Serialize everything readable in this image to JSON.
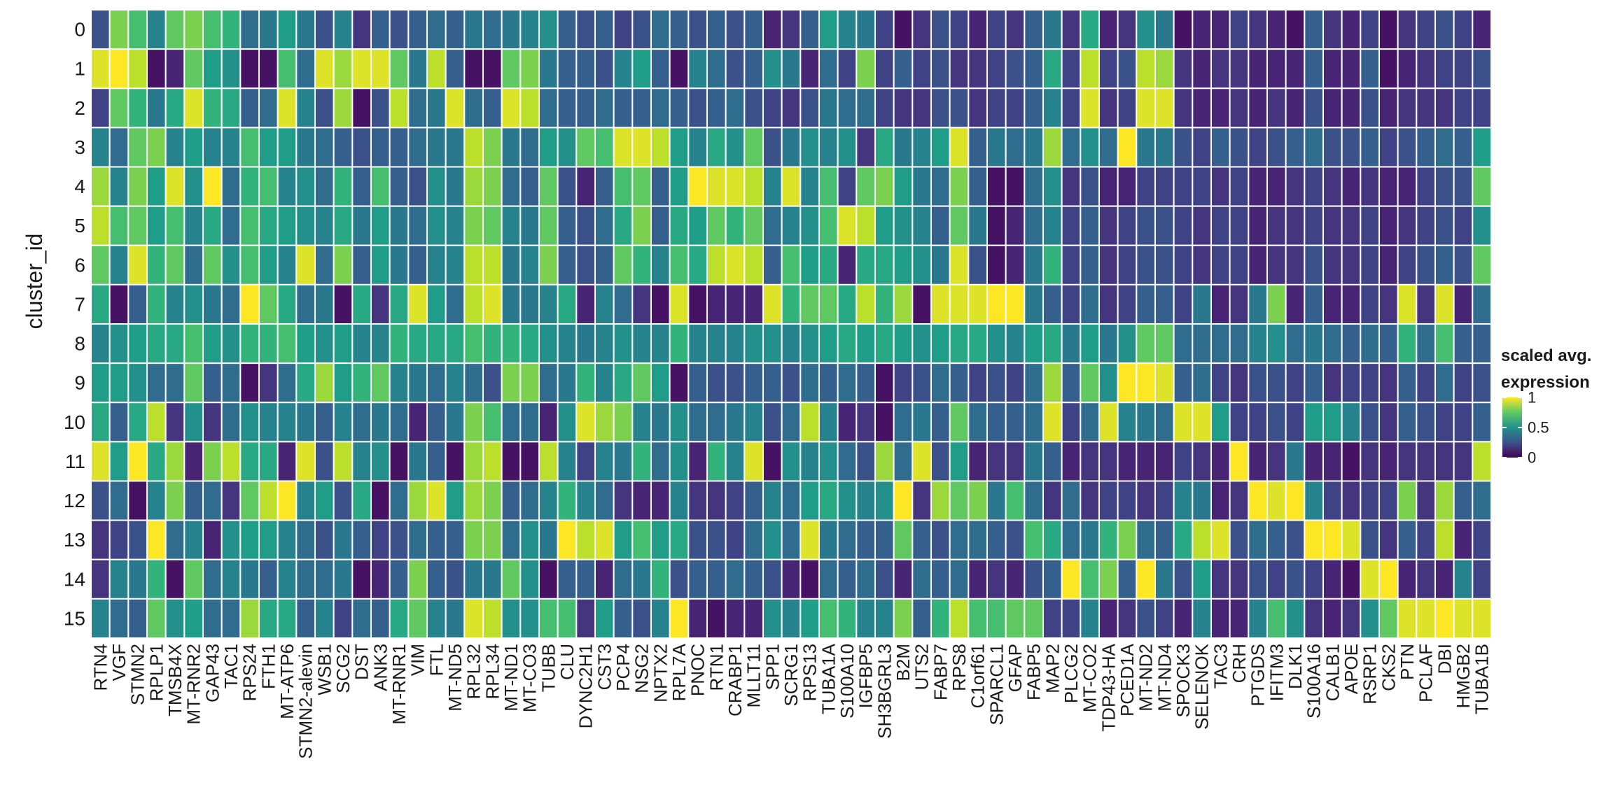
{
  "chart_data": {
    "type": "heatmap",
    "title": "",
    "xlabel": "",
    "ylabel": "cluster_id",
    "legend": {
      "title_line1": "scaled avg.",
      "title_line2": "expression",
      "ticks": [
        "1",
        "0.5",
        "0"
      ],
      "tick_values": [
        1,
        0.5,
        0
      ],
      "range": [
        0,
        1
      ],
      "colormap": "viridis",
      "placement": "right"
    },
    "genes": [
      "RTN4",
      "VGF",
      "STMN2",
      "RPLP1",
      "TMSB4X",
      "MT-RNR2",
      "GAP43",
      "TAC1",
      "RPS24",
      "FTH1",
      "MT-ATP6",
      "STMN2-alevin",
      "WSB1",
      "SCG2",
      "DST",
      "ANK3",
      "MT-RNR1",
      "VIM",
      "FTL",
      "MT-ND5",
      "RPL32",
      "RPL34",
      "MT-ND1",
      "MT-CO3",
      "TUBB",
      "CLU",
      "DYNC2H1",
      "CST3",
      "PCP4",
      "NSG2",
      "NPTX2",
      "RPL7A",
      "PNOC",
      "RTN1",
      "CRABP1",
      "MLLT11",
      "SPP1",
      "SCRG1",
      "RPS13",
      "TUBA1A",
      "S100A10",
      "IGFBP5",
      "SH3BGRL3",
      "B2M",
      "UTS2",
      "FABP7",
      "RPS8",
      "C1orf61",
      "SPARCL1",
      "GFAP",
      "FABP5",
      "MAP2",
      "PLCG2",
      "MT-CO2",
      "TDP43-HA",
      "PCED1A",
      "MT-ND2",
      "MT-ND4",
      "SPOCK3",
      "SELENOK",
      "TAC3",
      "CRH",
      "PTGDS",
      "IFITM3",
      "DLK1",
      "S100A16",
      "CALB1",
      "APOE",
      "RSRP1",
      "CKS2",
      "PTN",
      "PCLAF",
      "DBI",
      "HMGB2",
      "TUBA1B"
    ],
    "clusters": [
      "0",
      "1",
      "2",
      "3",
      "4",
      "5",
      "6",
      "7",
      "8",
      "9",
      "10",
      "11",
      "12",
      "13",
      "14",
      "15"
    ],
    "values": [
      [
        0.25,
        0.8,
        0.7,
        0.45,
        0.75,
        0.8,
        0.7,
        0.65,
        0.35,
        0.4,
        0.55,
        0.4,
        0.25,
        0.45,
        0.15,
        0.3,
        0.25,
        0.3,
        0.35,
        0.3,
        0.4,
        0.35,
        0.4,
        0.45,
        0.5,
        0.3,
        0.25,
        0.3,
        0.2,
        0.25,
        0.35,
        0.3,
        0.25,
        0.3,
        0.25,
        0.3,
        0.1,
        0.15,
        0.3,
        0.55,
        0.45,
        0.4,
        0.2,
        0.05,
        0.15,
        0.25,
        0.2,
        0.1,
        0.2,
        0.15,
        0.3,
        0.4,
        0.15,
        0.6,
        0.1,
        0.15,
        0.5,
        0.4,
        0.05,
        0.1,
        0.1,
        0.2,
        0.15,
        0.1,
        0.05,
        0.3,
        0.15,
        0.1,
        0.2,
        0.05,
        0.15,
        0.2,
        0.25,
        0.2,
        0.1
      ],
      [
        0.95,
        1.0,
        0.9,
        0.05,
        0.1,
        0.75,
        0.55,
        0.5,
        0.05,
        0.05,
        0.7,
        0.35,
        0.95,
        0.85,
        0.95,
        0.95,
        0.75,
        0.4,
        0.9,
        0.3,
        0.05,
        0.05,
        0.75,
        0.8,
        0.4,
        0.3,
        0.3,
        0.25,
        0.45,
        0.55,
        0.3,
        0.05,
        0.45,
        0.35,
        0.25,
        0.3,
        0.5,
        0.4,
        0.1,
        0.35,
        0.2,
        0.8,
        0.2,
        0.3,
        0.2,
        0.25,
        0.15,
        0.15,
        0.2,
        0.25,
        0.3,
        0.6,
        0.2,
        0.9,
        0.2,
        0.25,
        0.9,
        0.85,
        0.15,
        0.1,
        0.15,
        0.15,
        0.1,
        0.1,
        0.1,
        0.3,
        0.1,
        0.1,
        0.3,
        0.05,
        0.1,
        0.15,
        0.2,
        0.2,
        0.25
      ],
      [
        0.2,
        0.75,
        0.65,
        0.4,
        0.6,
        0.95,
        0.65,
        0.6,
        0.3,
        0.35,
        0.95,
        0.45,
        0.25,
        0.85,
        0.05,
        0.25,
        0.9,
        0.35,
        0.4,
        0.95,
        0.35,
        0.3,
        0.95,
        0.9,
        0.35,
        0.3,
        0.3,
        0.35,
        0.3,
        0.3,
        0.35,
        0.3,
        0.25,
        0.3,
        0.35,
        0.25,
        0.2,
        0.15,
        0.25,
        0.4,
        0.35,
        0.35,
        0.2,
        0.15,
        0.15,
        0.25,
        0.25,
        0.15,
        0.2,
        0.2,
        0.3,
        0.45,
        0.2,
        0.95,
        0.15,
        0.2,
        0.95,
        0.95,
        0.15,
        0.1,
        0.1,
        0.15,
        0.1,
        0.15,
        0.1,
        0.25,
        0.1,
        0.1,
        0.25,
        0.1,
        0.15,
        0.15,
        0.15,
        0.2,
        0.2
      ],
      [
        0.45,
        0.35,
        0.75,
        0.8,
        0.45,
        0.55,
        0.45,
        0.45,
        0.7,
        0.55,
        0.55,
        0.4,
        0.35,
        0.3,
        0.25,
        0.3,
        0.3,
        0.35,
        0.4,
        0.4,
        0.9,
        0.8,
        0.4,
        0.35,
        0.55,
        0.5,
        0.75,
        0.7,
        0.95,
        0.95,
        0.9,
        0.55,
        0.45,
        0.6,
        0.5,
        0.75,
        0.25,
        0.4,
        0.5,
        0.45,
        0.5,
        0.15,
        0.6,
        0.4,
        0.45,
        0.55,
        0.95,
        0.3,
        0.4,
        0.35,
        0.4,
        0.85,
        0.35,
        0.5,
        0.35,
        1.0,
        0.4,
        0.4,
        0.25,
        0.2,
        0.3,
        0.25,
        0.2,
        0.25,
        0.3,
        0.35,
        0.25,
        0.25,
        0.3,
        0.2,
        0.25,
        0.3,
        0.35,
        0.3,
        0.55
      ],
      [
        0.85,
        0.45,
        0.8,
        0.55,
        0.95,
        0.5,
        1.0,
        0.35,
        0.65,
        0.7,
        0.45,
        0.5,
        0.35,
        0.65,
        0.3,
        0.7,
        0.3,
        0.25,
        0.5,
        0.4,
        0.85,
        0.8,
        0.35,
        0.3,
        0.75,
        0.25,
        0.1,
        0.3,
        0.7,
        0.75,
        0.3,
        0.55,
        1.0,
        0.95,
        0.95,
        0.9,
        0.45,
        0.95,
        0.45,
        0.7,
        0.2,
        0.75,
        0.8,
        0.55,
        0.4,
        0.35,
        0.8,
        0.3,
        0.05,
        0.05,
        0.35,
        0.5,
        0.15,
        0.25,
        0.1,
        0.1,
        0.2,
        0.2,
        0.2,
        0.2,
        0.15,
        0.2,
        0.1,
        0.1,
        0.15,
        0.2,
        0.15,
        0.1,
        0.15,
        0.1,
        0.1,
        0.2,
        0.25,
        0.25,
        0.75
      ],
      [
        0.9,
        0.7,
        0.75,
        0.55,
        0.7,
        0.45,
        0.6,
        0.35,
        0.7,
        0.6,
        0.55,
        0.5,
        0.45,
        0.6,
        0.4,
        0.55,
        0.4,
        0.35,
        0.5,
        0.45,
        0.8,
        0.75,
        0.45,
        0.4,
        0.75,
        0.3,
        0.25,
        0.35,
        0.6,
        0.8,
        0.3,
        0.6,
        0.55,
        0.75,
        0.65,
        0.75,
        0.35,
        0.45,
        0.5,
        0.7,
        0.95,
        0.9,
        0.55,
        0.5,
        0.45,
        0.3,
        0.75,
        0.4,
        0.05,
        0.1,
        0.35,
        0.45,
        0.2,
        0.3,
        0.15,
        0.2,
        0.25,
        0.25,
        0.2,
        0.15,
        0.2,
        0.2,
        0.1,
        0.15,
        0.15,
        0.2,
        0.15,
        0.15,
        0.2,
        0.1,
        0.15,
        0.2,
        0.25,
        0.2,
        0.5
      ],
      [
        0.75,
        0.45,
        0.95,
        0.65,
        0.75,
        0.35,
        0.75,
        0.5,
        0.7,
        0.55,
        0.45,
        0.95,
        0.35,
        0.8,
        0.3,
        0.55,
        0.4,
        0.3,
        0.45,
        0.45,
        0.9,
        0.9,
        0.4,
        0.45,
        0.8,
        0.3,
        0.25,
        0.3,
        0.75,
        0.65,
        0.45,
        0.7,
        0.6,
        0.9,
        0.95,
        0.9,
        0.3,
        0.7,
        0.55,
        0.6,
        0.1,
        0.6,
        0.6,
        0.55,
        0.5,
        0.4,
        0.95,
        0.25,
        0.05,
        0.1,
        0.4,
        0.65,
        0.2,
        0.3,
        0.15,
        0.2,
        0.25,
        0.25,
        0.2,
        0.15,
        0.2,
        0.2,
        0.1,
        0.15,
        0.15,
        0.25,
        0.15,
        0.15,
        0.2,
        0.1,
        0.2,
        0.25,
        0.3,
        0.25,
        0.75
      ],
      [
        0.6,
        0.05,
        0.3,
        0.65,
        0.45,
        0.5,
        0.4,
        0.35,
        1.0,
        0.75,
        0.6,
        0.35,
        0.4,
        0.05,
        0.6,
        0.15,
        0.6,
        0.95,
        0.55,
        0.35,
        0.9,
        0.95,
        0.4,
        0.4,
        0.45,
        0.6,
        0.1,
        0.45,
        0.35,
        0.15,
        0.05,
        0.95,
        0.05,
        0.1,
        0.1,
        0.1,
        0.95,
        0.65,
        0.75,
        0.75,
        0.6,
        0.9,
        0.65,
        0.85,
        0.05,
        0.95,
        0.95,
        0.95,
        1.0,
        1.0,
        0.4,
        0.3,
        0.2,
        0.35,
        0.15,
        0.2,
        0.3,
        0.3,
        0.2,
        0.4,
        0.1,
        0.15,
        0.4,
        0.8,
        0.1,
        0.3,
        0.1,
        0.1,
        0.2,
        0.15,
        0.95,
        0.15,
        0.95,
        0.1,
        0.35
      ],
      [
        0.45,
        0.5,
        0.55,
        0.6,
        0.6,
        0.7,
        0.55,
        0.5,
        0.65,
        0.65,
        0.7,
        0.55,
        0.5,
        0.55,
        0.45,
        0.45,
        0.65,
        0.6,
        0.6,
        0.6,
        0.7,
        0.65,
        0.65,
        0.6,
        0.5,
        0.45,
        0.4,
        0.45,
        0.5,
        0.45,
        0.45,
        0.65,
        0.45,
        0.45,
        0.45,
        0.5,
        0.5,
        0.45,
        0.5,
        0.55,
        0.6,
        0.55,
        0.6,
        0.55,
        0.5,
        0.55,
        0.6,
        0.6,
        0.5,
        0.45,
        0.55,
        0.6,
        0.4,
        0.55,
        0.4,
        0.5,
        0.75,
        0.75,
        0.35,
        0.35,
        0.35,
        0.35,
        0.45,
        0.5,
        0.35,
        0.4,
        0.35,
        0.3,
        0.35,
        0.3,
        0.65,
        0.35,
        0.7,
        0.3,
        0.3
      ],
      [
        0.55,
        0.55,
        0.5,
        0.35,
        0.35,
        0.75,
        0.3,
        0.35,
        0.05,
        0.15,
        0.35,
        0.6,
        0.85,
        0.55,
        0.65,
        0.75,
        0.45,
        0.4,
        0.35,
        0.45,
        0.35,
        0.25,
        0.8,
        0.8,
        0.35,
        0.4,
        0.65,
        0.45,
        0.6,
        0.75,
        0.55,
        0.05,
        0.3,
        0.25,
        0.25,
        0.3,
        0.3,
        0.25,
        0.35,
        0.3,
        0.35,
        0.3,
        0.05,
        0.2,
        0.25,
        0.35,
        0.3,
        0.2,
        0.25,
        0.2,
        0.35,
        0.85,
        0.3,
        0.75,
        0.5,
        1.0,
        1.0,
        0.95,
        0.3,
        0.35,
        0.2,
        0.15,
        0.25,
        0.25,
        0.2,
        0.3,
        0.15,
        0.2,
        0.2,
        0.15,
        0.3,
        0.2,
        0.35,
        0.2,
        0.25
      ],
      [
        0.6,
        0.3,
        0.6,
        0.9,
        0.15,
        0.5,
        0.15,
        0.35,
        0.5,
        0.45,
        0.45,
        0.4,
        0.3,
        0.45,
        0.35,
        0.4,
        0.35,
        0.1,
        0.3,
        0.4,
        0.8,
        0.7,
        0.35,
        0.35,
        0.1,
        0.5,
        0.95,
        0.85,
        0.8,
        0.45,
        0.4,
        0.5,
        0.35,
        0.35,
        0.4,
        0.45,
        0.25,
        0.35,
        0.9,
        0.45,
        0.1,
        0.15,
        0.05,
        0.35,
        0.4,
        0.3,
        0.75,
        0.35,
        0.3,
        0.3,
        0.35,
        0.95,
        0.2,
        0.35,
        0.95,
        0.45,
        0.4,
        0.35,
        0.95,
        0.95,
        0.55,
        0.2,
        0.2,
        0.25,
        0.2,
        0.55,
        0.55,
        0.45,
        0.25,
        0.15,
        0.3,
        0.25,
        0.2,
        0.2,
        0.3
      ],
      [
        0.95,
        0.55,
        1.0,
        0.6,
        0.85,
        0.1,
        0.8,
        0.9,
        0.6,
        0.6,
        0.1,
        0.95,
        0.25,
        0.9,
        0.45,
        0.5,
        0.05,
        0.4,
        0.3,
        0.05,
        0.85,
        0.9,
        0.05,
        0.05,
        0.9,
        0.45,
        0.2,
        0.45,
        0.4,
        0.65,
        0.35,
        0.5,
        0.1,
        0.65,
        0.45,
        0.95,
        0.05,
        0.5,
        0.45,
        0.5,
        0.35,
        0.25,
        0.85,
        0.35,
        0.95,
        0.25,
        0.55,
        0.1,
        0.15,
        0.15,
        0.4,
        0.3,
        0.1,
        0.15,
        0.15,
        0.1,
        0.1,
        0.1,
        0.2,
        0.15,
        0.1,
        1.0,
        0.1,
        0.15,
        0.4,
        0.1,
        0.1,
        0.05,
        0.15,
        0.1,
        0.15,
        0.15,
        0.15,
        0.15,
        0.9
      ],
      [
        0.25,
        0.35,
        0.05,
        0.45,
        0.8,
        0.3,
        0.35,
        0.15,
        0.75,
        0.9,
        1.0,
        0.45,
        0.55,
        0.25,
        0.6,
        0.05,
        0.35,
        0.85,
        0.95,
        0.55,
        0.85,
        0.8,
        0.3,
        0.35,
        0.45,
        0.65,
        0.45,
        0.35,
        0.15,
        0.1,
        0.1,
        0.45,
        0.15,
        0.15,
        0.2,
        0.3,
        0.45,
        0.35,
        0.55,
        0.6,
        0.5,
        0.45,
        0.5,
        1.0,
        0.15,
        0.85,
        0.75,
        0.8,
        0.4,
        0.7,
        0.35,
        0.15,
        0.35,
        0.15,
        0.2,
        0.2,
        0.15,
        0.2,
        0.45,
        0.4,
        0.1,
        0.15,
        1.0,
        0.95,
        1.0,
        0.45,
        0.2,
        0.15,
        0.2,
        0.2,
        0.8,
        0.15,
        0.85,
        0.3,
        0.35
      ],
      [
        0.15,
        0.2,
        0.25,
        1.0,
        0.35,
        0.45,
        0.1,
        0.5,
        0.55,
        0.55,
        0.45,
        0.35,
        0.25,
        0.4,
        0.3,
        0.2,
        0.25,
        0.35,
        0.3,
        0.3,
        0.8,
        0.8,
        0.35,
        0.5,
        0.4,
        1.0,
        0.9,
        0.95,
        0.55,
        0.7,
        0.55,
        0.6,
        0.25,
        0.25,
        0.2,
        0.35,
        0.5,
        0.35,
        0.95,
        0.4,
        0.35,
        0.3,
        0.3,
        0.75,
        0.3,
        0.25,
        0.35,
        0.35,
        0.3,
        0.25,
        0.7,
        0.6,
        0.35,
        0.4,
        0.65,
        0.8,
        0.35,
        0.3,
        0.6,
        0.9,
        0.95,
        0.25,
        0.35,
        0.3,
        0.25,
        1.0,
        1.0,
        0.95,
        0.25,
        0.15,
        0.3,
        0.2,
        0.9,
        0.1,
        0.2
      ],
      [
        0.15,
        0.45,
        0.4,
        0.65,
        0.05,
        0.75,
        0.35,
        0.45,
        0.4,
        0.3,
        0.45,
        0.35,
        0.35,
        0.4,
        0.05,
        0.1,
        0.3,
        0.8,
        0.3,
        0.25,
        0.4,
        0.4,
        0.75,
        0.5,
        0.05,
        0.3,
        0.3,
        0.1,
        0.35,
        0.4,
        0.65,
        0.25,
        0.3,
        0.3,
        0.35,
        0.3,
        0.25,
        0.1,
        0.05,
        0.35,
        0.3,
        0.35,
        0.25,
        0.1,
        0.35,
        0.3,
        0.35,
        0.1,
        0.15,
        0.1,
        0.25,
        0.3,
        1.0,
        0.7,
        0.8,
        0.3,
        1.0,
        0.4,
        0.25,
        0.55,
        0.15,
        0.15,
        0.25,
        0.2,
        0.25,
        0.2,
        0.1,
        0.05,
        0.95,
        1.0,
        0.1,
        0.15,
        0.1,
        0.45,
        0.2
      ],
      [
        0.45,
        0.35,
        0.3,
        0.75,
        0.5,
        0.55,
        0.35,
        0.35,
        0.85,
        0.6,
        0.6,
        0.3,
        0.45,
        0.2,
        0.35,
        0.3,
        0.6,
        0.75,
        0.45,
        0.4,
        0.95,
        0.9,
        0.5,
        0.5,
        0.7,
        0.7,
        0.15,
        0.55,
        0.3,
        0.25,
        0.45,
        1.0,
        0.1,
        0.05,
        0.1,
        0.1,
        0.5,
        0.45,
        0.55,
        0.7,
        0.65,
        0.45,
        0.45,
        0.8,
        0.3,
        0.65,
        0.9,
        0.7,
        0.7,
        0.75,
        0.75,
        0.2,
        0.2,
        0.45,
        0.1,
        0.15,
        0.25,
        0.2,
        0.1,
        0.45,
        0.1,
        0.1,
        0.45,
        0.7,
        0.5,
        0.15,
        0.1,
        0.15,
        0.5,
        0.75,
        0.95,
        0.95,
        1.0,
        0.95,
        0.95
      ]
    ]
  }
}
